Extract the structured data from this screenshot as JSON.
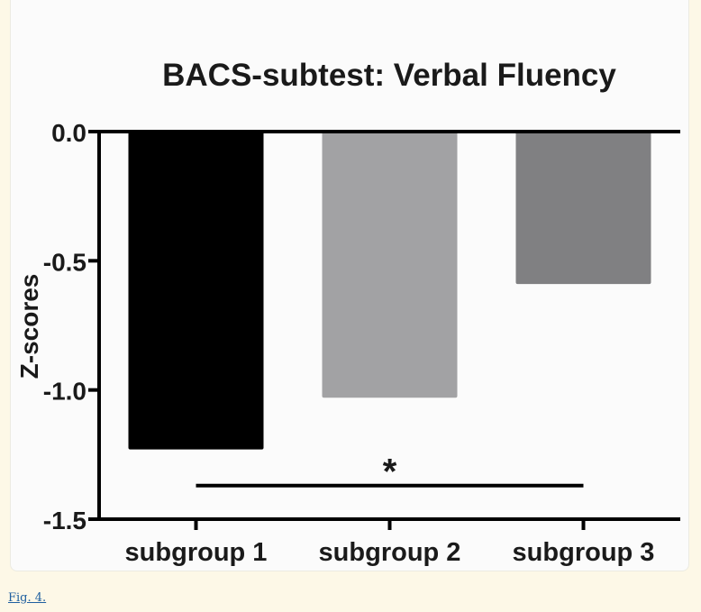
{
  "caption": {
    "link_text": "Fig. 4."
  },
  "chart_data": {
    "type": "bar",
    "title": "BACS-subtest: Verbal Fluency",
    "xlabel": "",
    "ylabel": "Z-scores",
    "categories": [
      "subgroup 1",
      "subgroup 2",
      "subgroup 3"
    ],
    "values": [
      -1.23,
      -1.03,
      -0.59
    ],
    "colors": [
      "#000000",
      "#a2a2a4",
      "#808082"
    ],
    "ylim": [
      -1.5,
      0.0
    ],
    "yticks": [
      0.0,
      -0.5,
      -1.0,
      -1.5
    ],
    "ytick_labels": [
      "0.0",
      "-0.5",
      "-1.0",
      "-1.5"
    ],
    "grid": false,
    "annotations": [
      {
        "text": "*",
        "from": "subgroup 1",
        "to": "subgroup 3",
        "y": -1.37
      }
    ]
  }
}
